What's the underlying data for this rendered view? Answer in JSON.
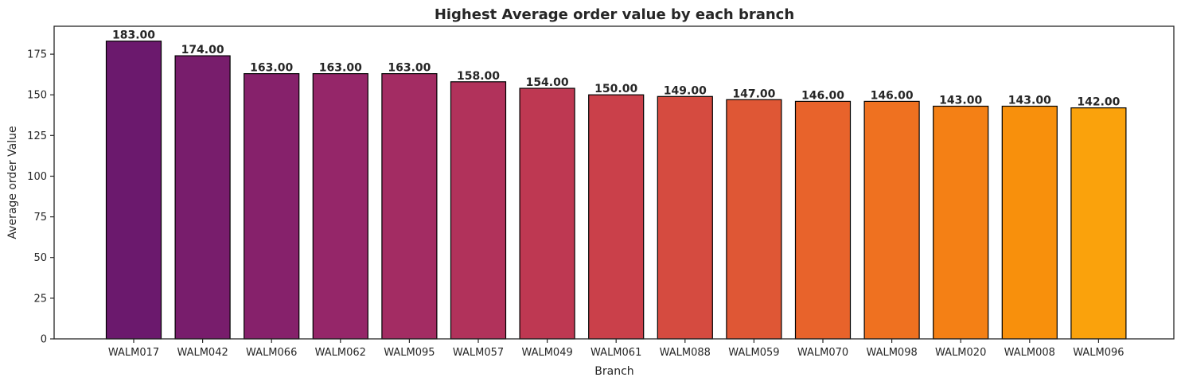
{
  "chart_data": {
    "type": "bar",
    "title": "Highest Average order value by each branch",
    "xlabel": "Branch",
    "ylabel": "Average order Value",
    "ylim": [
      0,
      192.15
    ],
    "yticks": [
      0,
      25,
      50,
      75,
      100,
      125,
      150,
      175
    ],
    "categories": [
      "WALM017",
      "WALM042",
      "WALM066",
      "WALM062",
      "WALM095",
      "WALM057",
      "WALM049",
      "WALM061",
      "WALM088",
      "WALM059",
      "WALM070",
      "WALM098",
      "WALM020",
      "WALM008",
      "WALM096"
    ],
    "values": [
      183,
      174,
      163,
      163,
      163,
      158,
      154,
      150,
      149,
      147,
      146,
      146,
      143,
      143,
      142
    ],
    "data_labels": [
      "183.00",
      "174.00",
      "163.00",
      "163.00",
      "163.00",
      "158.00",
      "154.00",
      "150.00",
      "149.00",
      "147.00",
      "146.00",
      "146.00",
      "143.00",
      "143.00",
      "142.00"
    ],
    "colors": [
      "#6b196d",
      "#781d6c",
      "#86216b",
      "#952669",
      "#a32c63",
      "#b1325b",
      "#be3852",
      "#ca404a",
      "#d54b40",
      "#df5735",
      "#e8632b",
      "#ef7120",
      "#f48015",
      "#f8900c",
      "#faa20c"
    ],
    "bar_edge_color": "#000000",
    "grid": false,
    "legend": "none"
  }
}
